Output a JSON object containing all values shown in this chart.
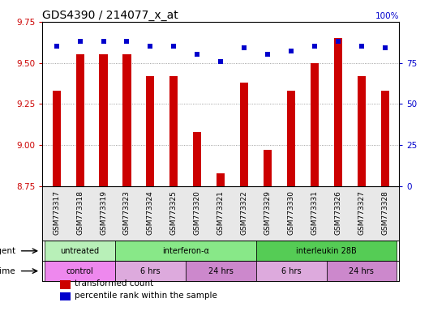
{
  "title": "GDS4390 / 214077_x_at",
  "samples": [
    "GSM773317",
    "GSM773318",
    "GSM773319",
    "GSM773323",
    "GSM773324",
    "GSM773325",
    "GSM773320",
    "GSM773321",
    "GSM773322",
    "GSM773329",
    "GSM773330",
    "GSM773331",
    "GSM773326",
    "GSM773327",
    "GSM773328"
  ],
  "transformed_count": [
    9.33,
    9.55,
    9.55,
    9.55,
    9.42,
    9.42,
    9.08,
    8.83,
    9.38,
    8.97,
    9.33,
    9.5,
    9.65,
    9.42,
    9.33
  ],
  "percentile_rank": [
    85,
    88,
    88,
    88,
    85,
    85,
    80,
    76,
    84,
    80,
    82,
    85,
    88,
    85,
    84
  ],
  "ylim_left": [
    8.75,
    9.75
  ],
  "ylim_right": [
    0,
    100
  ],
  "yticks_left": [
    8.75,
    9.0,
    9.25,
    9.5,
    9.75
  ],
  "yticks_right": [
    0,
    25,
    50,
    75,
    100
  ],
  "bar_color": "#cc0000",
  "dot_color": "#0000cc",
  "bar_bottom": 8.75,
  "agent_groups": [
    {
      "label": "untreated",
      "start": 0,
      "end": 3,
      "color": "#b8f0b8"
    },
    {
      "label": "interferon-α",
      "start": 3,
      "end": 9,
      "color": "#88e888"
    },
    {
      "label": "interleukin 28B",
      "start": 9,
      "end": 15,
      "color": "#55cc55"
    }
  ],
  "time_groups": [
    {
      "label": "control",
      "start": 0,
      "end": 3,
      "color": "#ee88ee"
    },
    {
      "label": "6 hrs",
      "start": 3,
      "end": 6,
      "color": "#ddaadd"
    },
    {
      "label": "24 hrs",
      "start": 6,
      "end": 9,
      "color": "#cc88cc"
    },
    {
      "label": "6 hrs",
      "start": 9,
      "end": 12,
      "color": "#ddaadd"
    },
    {
      "label": "24 hrs",
      "start": 12,
      "end": 15,
      "color": "#cc88cc"
    }
  ],
  "legend_items": [
    {
      "color": "#cc0000",
      "marker": "s",
      "label": "transformed count"
    },
    {
      "color": "#0000cc",
      "marker": "s",
      "label": "percentile rank within the sample"
    }
  ],
  "grid_color": "#888888",
  "background_color": "#ffffff",
  "tick_color_left": "#cc0000",
  "tick_color_right": "#0000cc",
  "title_fontsize": 10,
  "axis_fontsize": 7.5,
  "label_fontsize": 7.5,
  "sample_fontsize": 6.5
}
